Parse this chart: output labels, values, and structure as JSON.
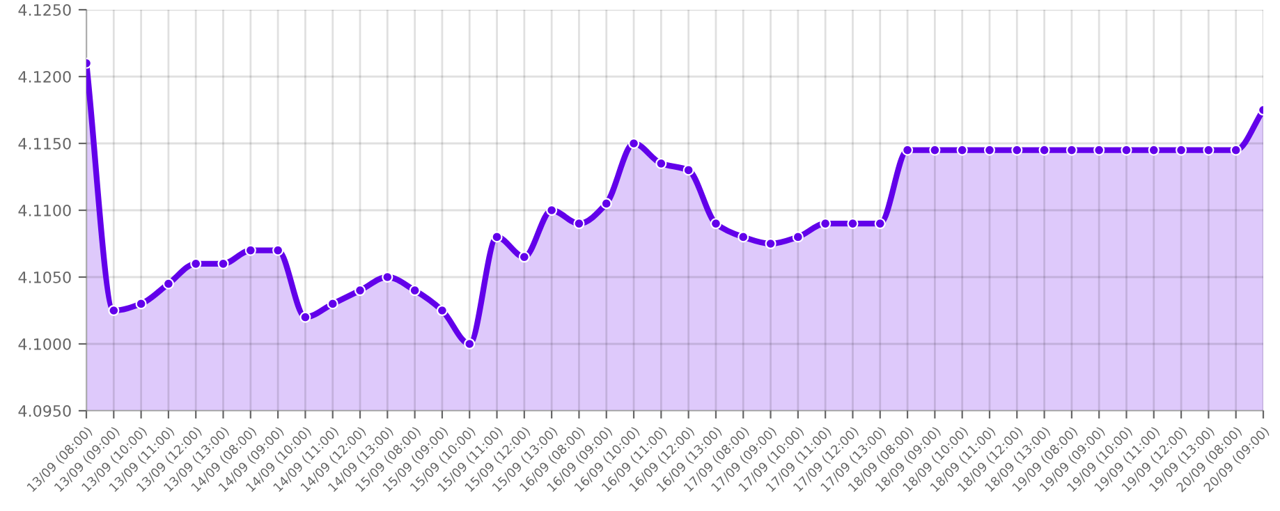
{
  "chart_data": {
    "type": "area",
    "categories": [
      "13/09 (08:00)",
      "13/09 (09:00)",
      "13/09 (10:00)",
      "13/09 (11:00)",
      "13/09 (12:00)",
      "13/09 (13:00)",
      "14/09 (08:00)",
      "14/09 (09:00)",
      "14/09 (10:00)",
      "14/09 (11:00)",
      "14/09 (12:00)",
      "14/09 (13:00)",
      "15/09 (08:00)",
      "15/09 (09:00)",
      "15/09 (10:00)",
      "15/09 (11:00)",
      "15/09 (12:00)",
      "15/09 (13:00)",
      "16/09 (08:00)",
      "16/09 (09:00)",
      "16/09 (10:00)",
      "16/09 (11:00)",
      "16/09 (12:00)",
      "16/09 (13:00)",
      "17/09 (08:00)",
      "17/09 (09:00)",
      "17/09 (10:00)",
      "17/09 (11:00)",
      "17/09 (12:00)",
      "17/09 (13:00)",
      "18/09 (08:00)",
      "18/09 (09:00)",
      "18/09 (10:00)",
      "18/09 (11:00)",
      "18/09 (12:00)",
      "18/09 (13:00)",
      "19/09 (08:00)",
      "19/09 (09:00)",
      "19/09 (10:00)",
      "19/09 (11:00)",
      "19/09 (12:00)",
      "19/09 (13:00)",
      "20/09 (08:00)",
      "20/09 (09:00)"
    ],
    "series": [
      {
        "color": "#6200ea",
        "values": [
          4.121,
          4.1025,
          4.103,
          4.1045,
          4.106,
          4.106,
          4.107,
          4.107,
          4.102,
          4.103,
          4.104,
          4.105,
          4.104,
          4.1025,
          4.1,
          4.108,
          4.1065,
          4.11,
          4.109,
          4.1105,
          4.115,
          4.1135,
          4.113,
          4.109,
          4.108,
          4.1075,
          4.108,
          4.109,
          4.109,
          4.109,
          4.1145,
          4.1145,
          4.1145,
          4.1145,
          4.1145,
          4.1145,
          4.1145,
          4.1145,
          4.1145,
          4.1145,
          4.1145,
          4.1145,
          4.1145,
          4.1175
        ]
      }
    ],
    "ylim": [
      4.095,
      4.125
    ],
    "yticks": [
      {
        "value": 4.095,
        "label": "4.0950"
      },
      {
        "value": 4.1,
        "label": "4.1000"
      },
      {
        "value": 4.105,
        "label": "4.1050"
      },
      {
        "value": 4.11,
        "label": "4.1100"
      },
      {
        "value": 4.115,
        "label": "4.1150"
      },
      {
        "value": 4.12,
        "label": "4.1200"
      },
      {
        "value": 4.125,
        "label": "4.1250"
      }
    ],
    "grid": true,
    "marker": "circle",
    "line_style": "solid"
  }
}
